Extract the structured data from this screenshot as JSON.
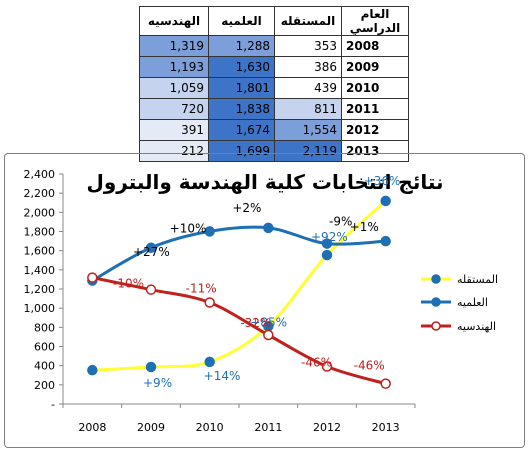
{
  "table": {
    "headers": [
      "الهندسيه",
      "العلميه",
      "المستقله",
      "العام الدراسي"
    ],
    "rows": [
      {
        "year": "2008",
        "h": "1,319",
        "e": "1,288",
        "m": "353"
      },
      {
        "year": "2009",
        "h": "1,193",
        "e": "1,630",
        "m": "386"
      },
      {
        "year": "2010",
        "h": "1,059",
        "e": "1,801",
        "m": "439"
      },
      {
        "year": "2011",
        "h": "720",
        "e": "1,838",
        "m": "811"
      },
      {
        "year": "2012",
        "h": "391",
        "e": "1,674",
        "m": "1,554"
      },
      {
        "year": "2013",
        "h": "212",
        "e": "1,699",
        "m": "2,119"
      }
    ]
  },
  "chart_data": {
    "type": "line",
    "title": "نتائج انتخابات كلية الهندسة والبترول",
    "categories": [
      "2008",
      "2009",
      "2010",
      "2011",
      "2012",
      "2013"
    ],
    "ylim": [
      0,
      2400
    ],
    "yticks": [
      "-",
      "200",
      "400",
      "600",
      "800",
      "1,000",
      "1,200",
      "1,400",
      "1,600",
      "1,800",
      "2,000",
      "2,200",
      "2,400"
    ],
    "grid": false,
    "legend_position": "right",
    "series": [
      {
        "name": "المستقله",
        "values": [
          353,
          386,
          439,
          811,
          1554,
          2119
        ],
        "color": "#ffff33",
        "marker_fill": "#1f6fb5",
        "marker_stroke": "#1f6fb5",
        "labels": [
          "",
          "+9%",
          "+14%",
          "+85%",
          "+92%",
          "+36%"
        ],
        "label_color": "#1f6fb5"
      },
      {
        "name": "العلميه",
        "values": [
          1288,
          1630,
          1801,
          1838,
          1674,
          1699
        ],
        "color": "#1f6fb5",
        "marker_fill": "#1f6fb5",
        "marker_stroke": "#1f6fb5",
        "labels": [
          "",
          "+27%",
          "+10%",
          "+2%",
          "-9%",
          "+1%"
        ],
        "label_color": "#000000"
      },
      {
        "name": "الهندسيه",
        "values": [
          1319,
          1193,
          1059,
          720,
          391,
          212
        ],
        "color": "#c0201e",
        "marker_fill": "#ffffff",
        "marker_stroke": "#c0201e",
        "labels": [
          "",
          "-10%",
          "-11%",
          "-32%",
          "-46%",
          "-46%"
        ],
        "label_color": "#c0201e"
      }
    ]
  },
  "colors": {
    "heat_dark": "#3e74c7",
    "heat_mid": "#7d9fd9",
    "heat_light": "#c5d3ee",
    "heat_pale": "#e4eaf6"
  }
}
